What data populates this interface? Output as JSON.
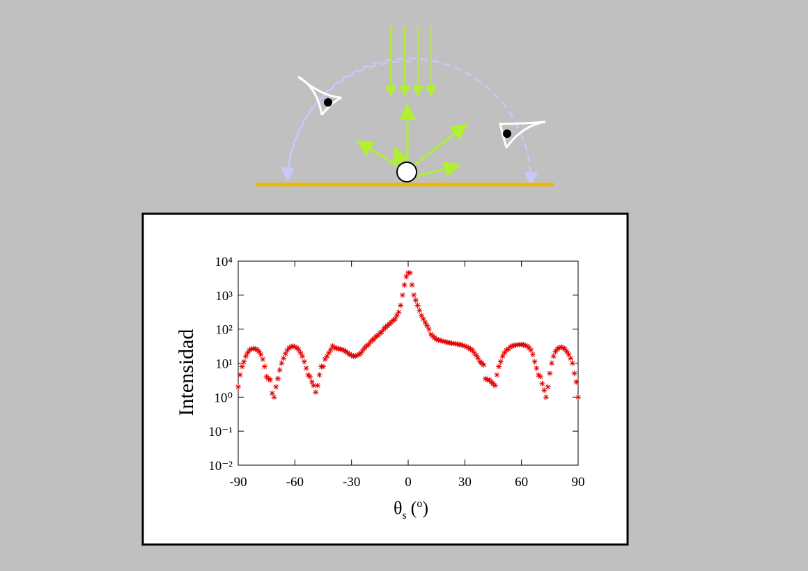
{
  "chart_data": {
    "type": "scatter",
    "y_label": "Intensidad",
    "x_label": [
      "θ",
      "s",
      "(",
      "o",
      ")"
    ],
    "y_scale": "log",
    "color": "#e00000",
    "marker": "asterisk",
    "xlim": [
      -90,
      90
    ],
    "xticks": [
      -90,
      -60,
      -30,
      0,
      30,
      60,
      90
    ],
    "ylim": [
      0.01,
      10000
    ],
    "yticks": [
      {
        "value": 0.01,
        "label": "10⁻²"
      },
      {
        "value": 0.1,
        "label": "10⁻¹"
      },
      {
        "value": 1,
        "label": "10⁰"
      },
      {
        "value": 10,
        "label": "10¹"
      },
      {
        "value": 100,
        "label": "10²"
      },
      {
        "value": 1000,
        "label": "10³"
      },
      {
        "value": 10000,
        "label": "10⁴"
      }
    ],
    "x": [
      -90,
      -89,
      -88,
      -87,
      -86,
      -85,
      -84,
      -83,
      -82,
      -81,
      -80,
      -79,
      -78,
      -77,
      -76,
      -75,
      -74,
      -73,
      -72,
      -71,
      -70,
      -69,
      -68,
      -67,
      -66,
      -65,
      -64,
      -63,
      -62,
      -61,
      -60,
      -59,
      -58,
      -57,
      -56,
      -55,
      -54,
      -53,
      -52,
      -51,
      -50,
      -49,
      -48,
      -47,
      -46,
      -45,
      -44,
      -43,
      -42,
      -41,
      -40,
      -39,
      -38,
      -37,
      -36,
      -35,
      -34,
      -33,
      -32,
      -31,
      -30,
      -29,
      -28,
      -27,
      -26,
      -25,
      -24,
      -23,
      -22,
      -21,
      -20,
      -19,
      -18,
      -17,
      -16,
      -15,
      -14,
      -13,
      -12,
      -11,
      -10,
      -9,
      -8,
      -7,
      -6,
      -5,
      -4,
      -3,
      -2,
      -1,
      0,
      1,
      2,
      3,
      4,
      5,
      6,
      7,
      8,
      9,
      10,
      11,
      12,
      13,
      14,
      15,
      16,
      17,
      18,
      19,
      20,
      21,
      22,
      23,
      24,
      25,
      26,
      27,
      28,
      29,
      30,
      31,
      32,
      33,
      34,
      35,
      36,
      37,
      38,
      39,
      40,
      41,
      42,
      43,
      44,
      45,
      46,
      47,
      48,
      49,
      50,
      51,
      52,
      53,
      54,
      55,
      56,
      57,
      58,
      59,
      60,
      61,
      62,
      63,
      64,
      65,
      66,
      67,
      68,
      69,
      70,
      71,
      72,
      73,
      74,
      75,
      76,
      77,
      78,
      79,
      80,
      81,
      82,
      83,
      84,
      85,
      86,
      87,
      88,
      89,
      90
    ],
    "values": [
      2,
      4.5,
      7.9,
      11,
      16,
      20,
      24,
      26,
      27,
      26,
      25,
      22,
      18,
      13,
      7.9,
      4,
      3.5,
      3.2,
      1.3,
      1,
      2,
      3.5,
      6.3,
      10,
      14,
      19,
      24,
      28,
      30,
      32,
      30,
      28,
      25,
      20,
      16,
      11,
      7.1,
      4.5,
      4,
      2.8,
      2.2,
      1.4,
      2.2,
      4.5,
      7.9,
      7.9,
      13,
      16,
      20,
      25,
      32,
      28,
      28,
      26,
      26,
      25,
      24,
      22,
      20,
      18,
      17,
      16,
      16,
      17,
      18,
      20,
      24,
      28,
      32,
      35,
      42,
      48,
      52,
      60,
      66,
      76,
      83,
      100,
      112,
      126,
      141,
      158,
      178,
      200,
      251,
      316,
      501,
      1000,
      2000,
      3500,
      4500,
      4500,
      2000,
      1000,
      708,
      501,
      355,
      251,
      200,
      158,
      126,
      100,
      71,
      63,
      56,
      50,
      48,
      47,
      45,
      43,
      42,
      40,
      40,
      38,
      38,
      37,
      36,
      35,
      35,
      33,
      32,
      30,
      28,
      26,
      24,
      20,
      17,
      14,
      11,
      10,
      8.9,
      3.5,
      3.2,
      3.2,
      2.8,
      2.5,
      2.2,
      4.5,
      7.9,
      11,
      16,
      20,
      24,
      26,
      30,
      32,
      33,
      34,
      35,
      35,
      35,
      35,
      33,
      32,
      28,
      24,
      18,
      11,
      7.1,
      4.5,
      4,
      2.5,
      1.6,
      1,
      2,
      5,
      10,
      16,
      22,
      26,
      28,
      30,
      28,
      26,
      22,
      18,
      14,
      10,
      5,
      2.8,
      1
    ]
  }
}
